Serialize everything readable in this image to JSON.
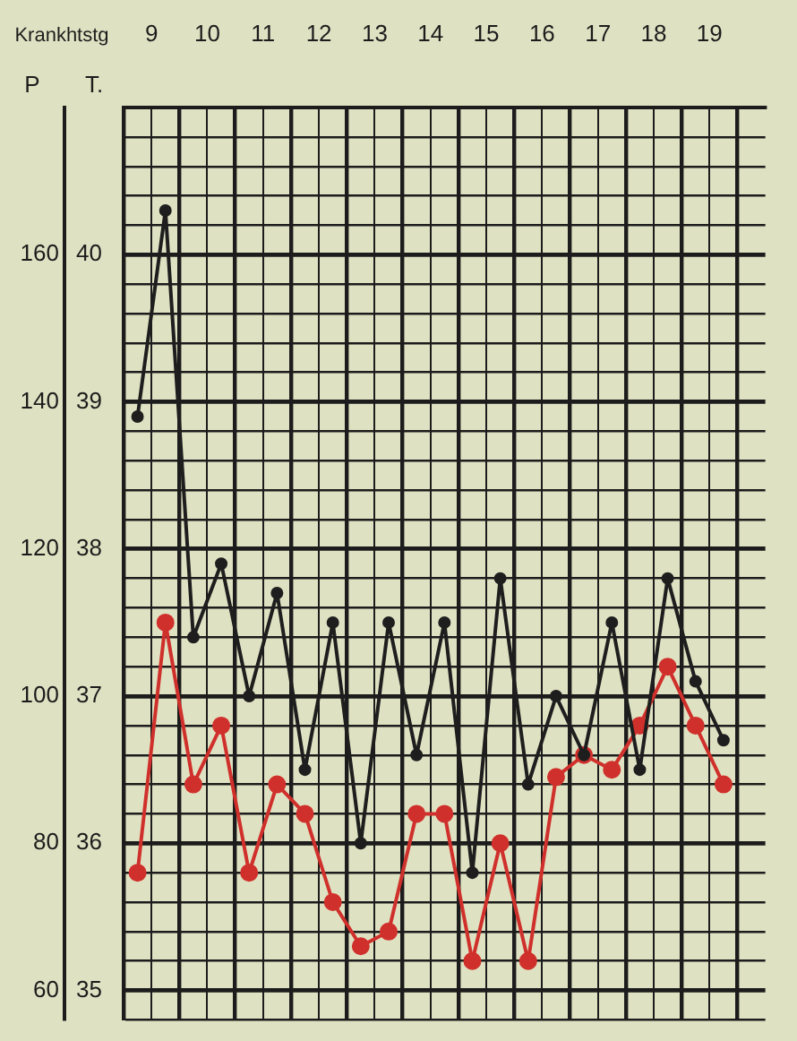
{
  "chart_data": {
    "type": "line",
    "xlabel": "Krankhtstg",
    "ylabel": "P",
    "y2label": "T.",
    "x": [
      9.25,
      9.75,
      10.25,
      10.75,
      11.25,
      11.75,
      12.25,
      12.75,
      13.25,
      13.75,
      14.25,
      14.75,
      15.25,
      15.75,
      16.25,
      16.75,
      17.25,
      17.75,
      18.25,
      18.75,
      19.25,
      19.75
    ],
    "xlim": [
      9,
      20.5
    ],
    "xticks": [
      {
        "value": 9,
        "label": null
      },
      {
        "value": 9.5,
        "label": "9"
      },
      {
        "value": 10,
        "label": null
      },
      {
        "value": 10.5,
        "label": "10"
      },
      {
        "value": 11,
        "label": null
      },
      {
        "value": 11.5,
        "label": "11"
      },
      {
        "value": 12,
        "label": null
      },
      {
        "value": 12.5,
        "label": "12"
      },
      {
        "value": 13,
        "label": null
      },
      {
        "value": 13.5,
        "label": "13"
      },
      {
        "value": 14,
        "label": null
      },
      {
        "value": 14.5,
        "label": "14"
      },
      {
        "value": 15,
        "label": null
      },
      {
        "value": 15.5,
        "label": "15"
      },
      {
        "value": 16,
        "label": null
      },
      {
        "value": 16.5,
        "label": "16"
      },
      {
        "value": 17,
        "label": null
      },
      {
        "value": 17.5,
        "label": "17"
      },
      {
        "value": 18,
        "label": null
      },
      {
        "value": 18.5,
        "label": "18"
      },
      {
        "value": 19,
        "label": null
      },
      {
        "value": 19.5,
        "label": "19"
      },
      {
        "value": 20,
        "label": null
      }
    ],
    "ylim": [
      56,
      180
    ],
    "yticks": [
      {
        "value": 56,
        "label": null
      },
      60,
      {
        "value": 64,
        "label": null
      },
      {
        "value": 68,
        "label": null
      },
      {
        "value": 72,
        "label": null
      },
      {
        "value": 76,
        "label": null
      },
      80,
      {
        "value": 84,
        "label": null
      },
      {
        "value": 88,
        "label": null
      },
      {
        "value": 92,
        "label": null
      },
      {
        "value": 96,
        "label": null
      },
      100,
      {
        "value": 104,
        "label": null
      },
      {
        "value": 108,
        "label": null
      },
      {
        "value": 112,
        "label": null
      },
      {
        "value": 116,
        "label": null
      },
      120,
      {
        "value": 124,
        "label": null
      },
      {
        "value": 128,
        "label": null
      },
      {
        "value": 132,
        "label": null
      },
      {
        "value": 136,
        "label": null
      },
      140,
      {
        "value": 144,
        "label": null
      },
      {
        "value": 148,
        "label": null
      },
      {
        "value": 152,
        "label": null
      },
      {
        "value": 156,
        "label": null
      },
      160,
      {
        "value": 164,
        "label": null
      },
      {
        "value": 168,
        "label": null
      },
      {
        "value": 172,
        "label": null
      },
      {
        "value": 176,
        "label": null
      }
    ],
    "y2lim": [
      34.8,
      41
    ],
    "y2ticks": [
      35,
      36,
      37,
      38,
      39,
      40
    ],
    "grid": true,
    "marker": "circle",
    "line_style": "solid",
    "series": [
      {
        "axis": "y2",
        "color": "#1e1e1e",
        "values": [
          38.9,
          40.3,
          37.4,
          37.9,
          37.0,
          37.7,
          36.5,
          37.5,
          36.0,
          37.5,
          36.6,
          37.5,
          35.8,
          37.8,
          36.4,
          37.0,
          36.6,
          37.5,
          36.5,
          37.8,
          37.1,
          36.7
        ]
      },
      {
        "axis": "y",
        "color": "#d0302c",
        "values": [
          76,
          110,
          88,
          96,
          76,
          88,
          84,
          72,
          66,
          68,
          84,
          84,
          64,
          80,
          64,
          89,
          92,
          90,
          96,
          104,
          96,
          88
        ]
      }
    ]
  }
}
